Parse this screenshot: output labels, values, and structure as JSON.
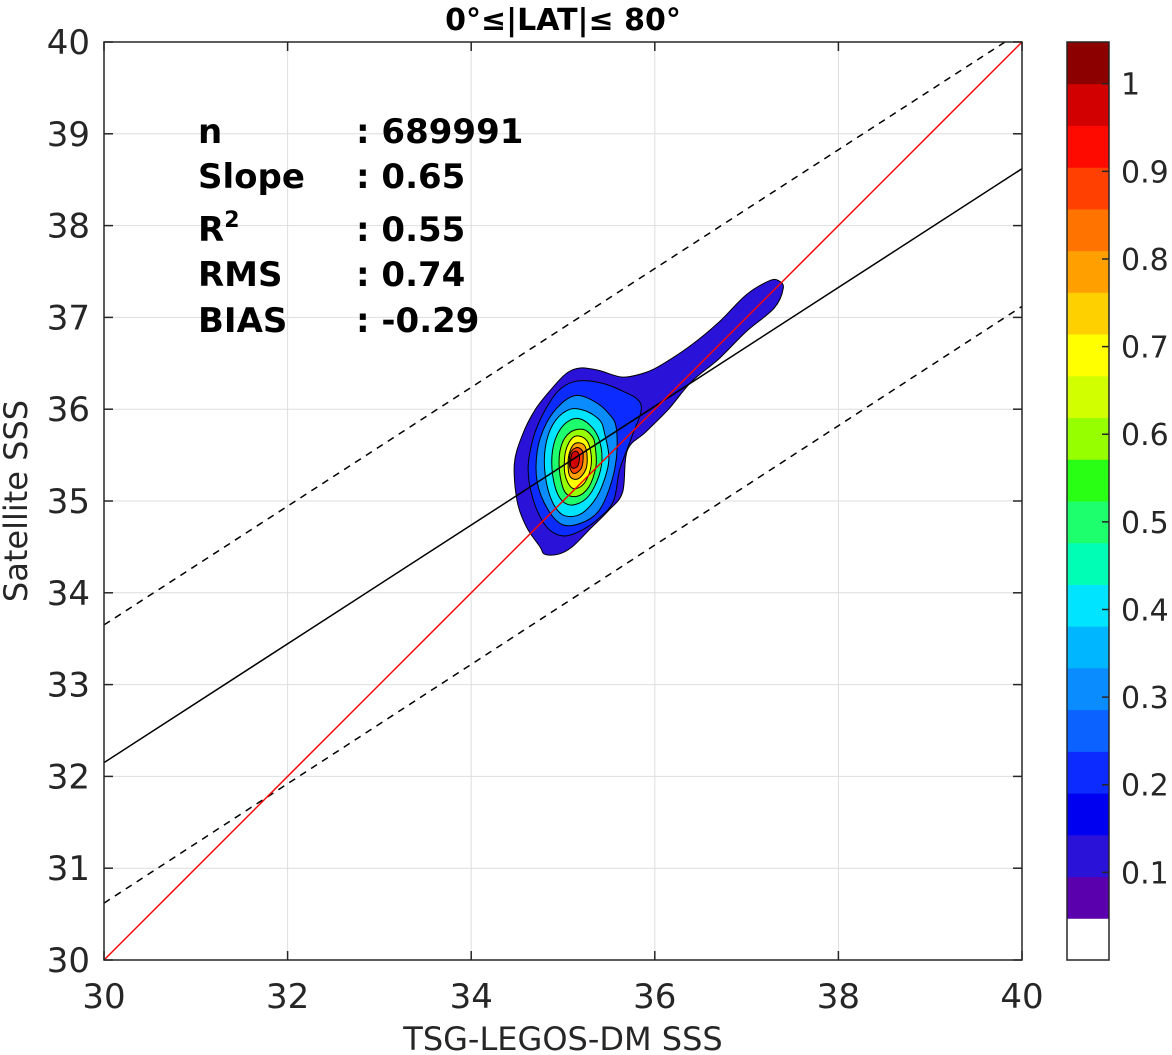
{
  "chart_data": {
    "type": "heatmap",
    "subtype": "2d-density-contour-scatter",
    "title": "0°≤|LAT|≤ 80°",
    "xlabel": "TSG-LEGOS-DM SSS",
    "ylabel": "Satellite SSS",
    "xlim": [
      30,
      40
    ],
    "ylim": [
      30,
      40
    ],
    "x_ticks": [
      "30",
      "32",
      "34",
      "36",
      "38",
      "40"
    ],
    "y_ticks": [
      "30",
      "31",
      "32",
      "33",
      "34",
      "35",
      "36",
      "37",
      "38",
      "39",
      "40"
    ],
    "grid": true,
    "stats": [
      {
        "label": "n",
        "sep": ":",
        "value": "689991"
      },
      {
        "label": "Slope",
        "sep": ":",
        "value": "0.65"
      },
      {
        "label": "R",
        "sup": "2",
        "sep": ":",
        "value": "0.55"
      },
      {
        "label": "RMS",
        "sep": ":",
        "value": "0.74"
      },
      {
        "label": "BIAS",
        "sep": ":",
        "value": "-0.29"
      }
    ],
    "lines": {
      "one_to_one": {
        "color": "#ff0000",
        "x": [
          30,
          40
        ],
        "y": [
          30,
          40
        ]
      },
      "fit": {
        "color": "#000000",
        "style": "solid",
        "x": [
          30,
          40
        ],
        "y": [
          32.15,
          38.62
        ]
      },
      "upper_bound": {
        "color": "#000000",
        "style": "dashed",
        "x": [
          30,
          40
        ],
        "y": [
          33.65,
          40.12
        ]
      },
      "lower_bound": {
        "color": "#000000",
        "style": "dashed",
        "x": [
          30,
          40
        ],
        "y": [
          30.62,
          37.12
        ]
      }
    },
    "density_center": [
      35.12,
      35.45
    ],
    "contour_levels": [
      0.05,
      0.1,
      0.15,
      0.2,
      0.25,
      0.3,
      0.35,
      0.4,
      0.45,
      0.5,
      0.55,
      0.6,
      0.65,
      0.7,
      0.75,
      0.8,
      0.85,
      0.9,
      0.95
    ],
    "contours": [
      {
        "level": 0.05,
        "points": [
          [
            37.35,
            37.4
          ],
          [
            37.4,
            37.32
          ],
          [
            37.3,
            37.1
          ],
          [
            37.0,
            36.85
          ],
          [
            36.7,
            36.55
          ],
          [
            36.4,
            36.3
          ],
          [
            36.15,
            36.0
          ],
          [
            35.9,
            35.75
          ],
          [
            35.7,
            35.55
          ],
          [
            35.65,
            35.1
          ],
          [
            35.5,
            34.9
          ],
          [
            35.3,
            34.7
          ],
          [
            35.1,
            34.5
          ],
          [
            34.95,
            34.42
          ],
          [
            34.8,
            34.42
          ],
          [
            34.75,
            34.5
          ],
          [
            34.6,
            34.72
          ],
          [
            34.5,
            35.0
          ],
          [
            34.47,
            35.4
          ],
          [
            34.55,
            35.7
          ],
          [
            34.7,
            36.0
          ],
          [
            34.9,
            36.25
          ],
          [
            35.05,
            36.4
          ],
          [
            35.2,
            36.45
          ],
          [
            35.4,
            36.42
          ],
          [
            35.65,
            36.35
          ],
          [
            35.9,
            36.4
          ],
          [
            36.1,
            36.5
          ],
          [
            36.4,
            36.7
          ],
          [
            36.7,
            36.95
          ],
          [
            37.0,
            37.25
          ],
          [
            37.25,
            37.4
          ]
        ]
      },
      {
        "level": 0.15,
        "points": [
          [
            35.85,
            36.05
          ],
          [
            35.75,
            35.7
          ],
          [
            35.62,
            35.35
          ],
          [
            35.55,
            35.0
          ],
          [
            35.4,
            34.82
          ],
          [
            35.2,
            34.68
          ],
          [
            35.0,
            34.62
          ],
          [
            34.82,
            34.72
          ],
          [
            34.68,
            35.0
          ],
          [
            34.62,
            35.35
          ],
          [
            34.68,
            35.7
          ],
          [
            34.8,
            35.98
          ],
          [
            34.95,
            36.2
          ],
          [
            35.12,
            36.3
          ],
          [
            35.35,
            36.3
          ],
          [
            35.6,
            36.22
          ]
        ]
      },
      {
        "level": 0.25,
        "points": [
          [
            35.58,
            35.8
          ],
          [
            35.58,
            35.45
          ],
          [
            35.5,
            35.12
          ],
          [
            35.38,
            34.88
          ],
          [
            35.2,
            34.76
          ],
          [
            35.0,
            34.74
          ],
          [
            34.84,
            34.9
          ],
          [
            34.72,
            35.2
          ],
          [
            34.72,
            35.55
          ],
          [
            34.82,
            35.85
          ],
          [
            34.98,
            36.06
          ],
          [
            35.15,
            36.15
          ],
          [
            35.35,
            36.08
          ],
          [
            35.5,
            35.95
          ]
        ]
      },
      {
        "level": 0.35,
        "points": [
          [
            35.45,
            35.75
          ],
          [
            35.5,
            35.45
          ],
          [
            35.42,
            35.15
          ],
          [
            35.3,
            34.95
          ],
          [
            35.15,
            34.84
          ],
          [
            34.98,
            34.86
          ],
          [
            34.86,
            35.05
          ],
          [
            34.8,
            35.35
          ],
          [
            34.82,
            35.65
          ],
          [
            34.92,
            35.88
          ],
          [
            35.08,
            36.0
          ],
          [
            35.25,
            35.98
          ],
          [
            35.4,
            35.88
          ]
        ]
      },
      {
        "level": 0.45,
        "points": [
          [
            35.4,
            35.65
          ],
          [
            35.42,
            35.4
          ],
          [
            35.34,
            35.15
          ],
          [
            35.22,
            35.0
          ],
          [
            35.06,
            34.96
          ],
          [
            34.94,
            35.08
          ],
          [
            34.88,
            35.35
          ],
          [
            34.9,
            35.62
          ],
          [
            35.0,
            35.82
          ],
          [
            35.15,
            35.9
          ],
          [
            35.3,
            35.82
          ]
        ]
      },
      {
        "level": 0.55,
        "points": [
          [
            35.35,
            35.6
          ],
          [
            35.36,
            35.38
          ],
          [
            35.28,
            35.15
          ],
          [
            35.15,
            35.05
          ],
          [
            35.02,
            35.1
          ],
          [
            34.96,
            35.35
          ],
          [
            34.98,
            35.6
          ],
          [
            35.08,
            35.75
          ],
          [
            35.22,
            35.78
          ],
          [
            35.32,
            35.7
          ]
        ]
      },
      {
        "level": 0.65,
        "points": [
          [
            35.3,
            35.55
          ],
          [
            35.3,
            35.35
          ],
          [
            35.22,
            35.18
          ],
          [
            35.1,
            35.14
          ],
          [
            35.02,
            35.3
          ],
          [
            35.03,
            35.55
          ],
          [
            35.12,
            35.7
          ],
          [
            35.24,
            35.68
          ]
        ]
      },
      {
        "level": 0.75,
        "points": [
          [
            35.26,
            35.52
          ],
          [
            35.25,
            35.35
          ],
          [
            35.16,
            35.24
          ],
          [
            35.07,
            35.28
          ],
          [
            35.06,
            35.48
          ],
          [
            35.12,
            35.62
          ],
          [
            35.22,
            35.62
          ]
        ]
      },
      {
        "level": 0.85,
        "points": [
          [
            35.22,
            35.5
          ],
          [
            35.2,
            35.36
          ],
          [
            35.12,
            35.3
          ],
          [
            35.07,
            35.38
          ],
          [
            35.08,
            35.52
          ],
          [
            35.14,
            35.58
          ],
          [
            35.2,
            35.56
          ]
        ]
      },
      {
        "level": 0.92,
        "points": [
          [
            35.18,
            35.48
          ],
          [
            35.16,
            35.38
          ],
          [
            35.1,
            35.36
          ],
          [
            35.08,
            35.42
          ],
          [
            35.1,
            35.52
          ],
          [
            35.15,
            35.54
          ]
        ]
      }
    ],
    "colorbar": {
      "min": 0,
      "max": 1,
      "colors": [
        "#ffffff",
        "#5a00ad",
        "#2a12d8",
        "#0000f0",
        "#0c2cff",
        "#0c62ff",
        "#0a8cff",
        "#00b6ff",
        "#00e4ff",
        "#00ffb4",
        "#1eff6e",
        "#28ff14",
        "#96ff00",
        "#d2ff00",
        "#ffff00",
        "#ffd000",
        "#ffa000",
        "#ff7400",
        "#ff4000",
        "#ff0a00",
        "#d20000",
        "#8c0000"
      ],
      "ticks": [
        "0.1",
        "0.2",
        "0.3",
        "0.4",
        "0.5",
        "0.6",
        "0.7",
        "0.8",
        "0.9",
        "1"
      ],
      "tick_values": [
        0.1,
        0.2,
        0.3,
        0.4,
        0.5,
        0.6,
        0.7,
        0.8,
        0.9,
        1.0
      ]
    }
  }
}
